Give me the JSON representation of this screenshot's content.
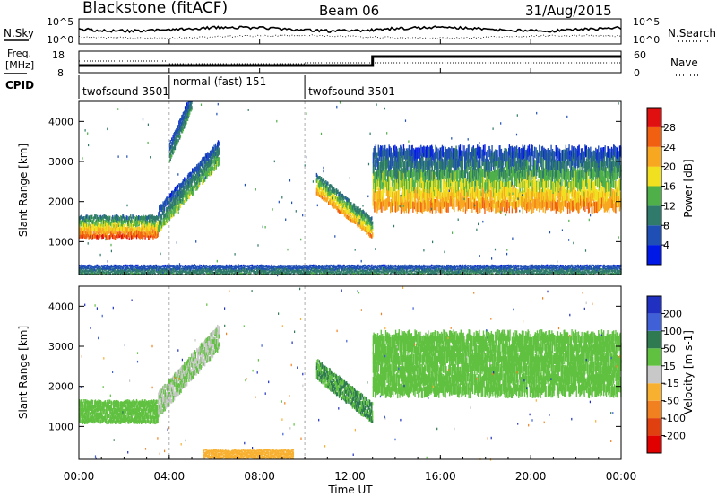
{
  "header": {
    "site": "Blackstone (fitACF)",
    "beam": "Beam 06",
    "date": "31/Aug/2015"
  },
  "noise_panel": {
    "left_label": "N.Sky",
    "right_label": "N.Search",
    "left_ticks": [
      "10^5",
      "10^0"
    ],
    "right_ticks": [
      "10^5",
      "10^0"
    ]
  },
  "freq_panel": {
    "left_label_1": "Freq.",
    "left_label_2": "[MHz]",
    "right_label": "Nave",
    "left_ticks": [
      "18",
      "8"
    ],
    "right_ticks": [
      "60",
      "0"
    ]
  },
  "cpid": {
    "label": "CPID",
    "segments": [
      {
        "name": "twofsound 3501",
        "start": 0.0,
        "end": 4.0
      },
      {
        "name": "normal (fast) 151",
        "start": 4.0,
        "end": 10.0
      },
      {
        "name": "twofsound 3501",
        "start": 10.0,
        "end": 24.0
      }
    ]
  },
  "colors": {
    "power": [
      "#0018e6",
      "#1f4fb4",
      "#2f7a6a",
      "#4fb04a",
      "#f0e020",
      "#f8a820",
      "#f06010",
      "#e01010"
    ],
    "velocity": [
      "#2030c0",
      "#4060d8",
      "#2f7a50",
      "#60c040",
      "#c8c8c8",
      "#f8b030",
      "#f08020",
      "#e04010",
      "#e00000"
    ]
  },
  "chart_data": [
    {
      "type": "heatmap",
      "name": "power",
      "ylabel": "Slant Range [km]",
      "xlabel": "Time UT",
      "xlim": [
        0,
        24
      ],
      "ylim": [
        180,
        4500
      ],
      "x_ticks": [
        "00:00",
        "04:00",
        "08:00",
        "12:00",
        "16:00",
        "20:00",
        "00:00"
      ],
      "y_ticks": [
        1000,
        2000,
        3000,
        4000
      ],
      "colorbar": {
        "label": "Power [dB]",
        "ticks": [
          4,
          8,
          12,
          16,
          20,
          24,
          28
        ],
        "range": [
          0,
          32
        ]
      },
      "echo_bands": [
        {
          "t": [
            0.0,
            3.5
          ],
          "range_km": [
            1050,
            1600
          ],
          "power_db": [
            8,
            28
          ]
        },
        {
          "t": [
            3.5,
            6.2
          ],
          "range_km": [
            1500,
            3200
          ],
          "power_db": [
            4,
            16
          ]
        },
        {
          "t": [
            4.0,
            5.0
          ],
          "range_km": [
            3200,
            4500
          ],
          "power_db": [
            4,
            12
          ]
        },
        {
          "t": [
            10.5,
            13.0
          ],
          "range_km": [
            1000,
            2400
          ],
          "power_db": [
            8,
            24
          ]
        },
        {
          "t": [
            13.0,
            24.0
          ],
          "range_km": [
            1700,
            3200
          ],
          "power_db": [
            4,
            24
          ]
        },
        {
          "t": [
            0.0,
            24.0
          ],
          "range_km": [
            180,
            400
          ],
          "power_db": [
            4,
            12
          ]
        }
      ]
    },
    {
      "type": "heatmap",
      "name": "velocity",
      "ylabel": "Slant Range [km]",
      "xlabel": "Time UT",
      "xlim": [
        0,
        24
      ],
      "ylim": [
        180,
        4500
      ],
      "x_ticks": [
        "00:00",
        "04:00",
        "08:00",
        "12:00",
        "16:00",
        "20:00",
        "00:00"
      ],
      "y_ticks": [
        1000,
        2000,
        3000,
        4000
      ],
      "colorbar": {
        "label": "Velocity [m s-1]",
        "ticks": [
          200,
          100,
          50,
          15,
          -15,
          -50,
          -100,
          -200
        ]
      },
      "echo_bands": [
        {
          "t": [
            0.0,
            3.5
          ],
          "range_km": [
            1050,
            1600
          ],
          "velocity": [
            -15,
            15
          ]
        },
        {
          "t": [
            3.5,
            6.2
          ],
          "range_km": [
            1500,
            3200
          ],
          "velocity": [
            -50,
            15
          ]
        },
        {
          "t": [
            10.5,
            13.0
          ],
          "range_km": [
            1000,
            2400
          ],
          "velocity": [
            -15,
            50
          ]
        },
        {
          "t": [
            13.0,
            24.0
          ],
          "range_km": [
            1700,
            3200
          ],
          "velocity": [
            -15,
            15
          ]
        },
        {
          "t": [
            5.5,
            9.5
          ],
          "range_km": [
            180,
            400
          ],
          "velocity": [
            -100,
            -50
          ]
        }
      ]
    }
  ]
}
